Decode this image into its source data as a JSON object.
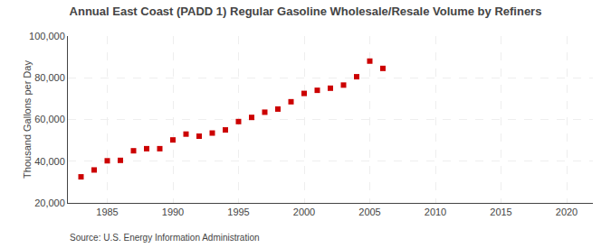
{
  "chart_data": {
    "type": "scatter",
    "title": "Annual East Coast (PADD 1) Regular Gasoline Wholesale/Resale Volume by Refiners",
    "ylabel": "Thousand Gallons per Day",
    "annotations": [
      "Source: U.S. Energy Information Administration"
    ],
    "x": [
      1983,
      1984,
      1985,
      1986,
      1987,
      1988,
      1989,
      1990,
      1991,
      1992,
      1993,
      1994,
      1995,
      1996,
      1997,
      1998,
      1999,
      2000,
      2001,
      2002,
      2003,
      2004,
      2005,
      2006
    ],
    "values": [
      32500,
      35800,
      40200,
      40400,
      45000,
      46000,
      46000,
      50200,
      53000,
      52000,
      53500,
      55000,
      59000,
      61000,
      63500,
      65000,
      68500,
      72500,
      74000,
      75000,
      76500,
      80500,
      88000,
      84500
    ],
    "color": "#CC0000",
    "marker": "square",
    "xlim": [
      1982,
      2022
    ],
    "ylim": [
      20000,
      100000
    ],
    "xticks": [
      1985,
      1990,
      1995,
      2000,
      2005,
      2010,
      2015,
      2020
    ],
    "yticks": [
      {
        "value": 20000,
        "label": "20,000"
      },
      {
        "value": 40000,
        "label": "40,000"
      },
      {
        "value": 60000,
        "label": "60,000"
      },
      {
        "value": 80000,
        "label": "80,000"
      },
      {
        "value": 100000,
        "label": "100,000"
      }
    ],
    "grid": true
  }
}
